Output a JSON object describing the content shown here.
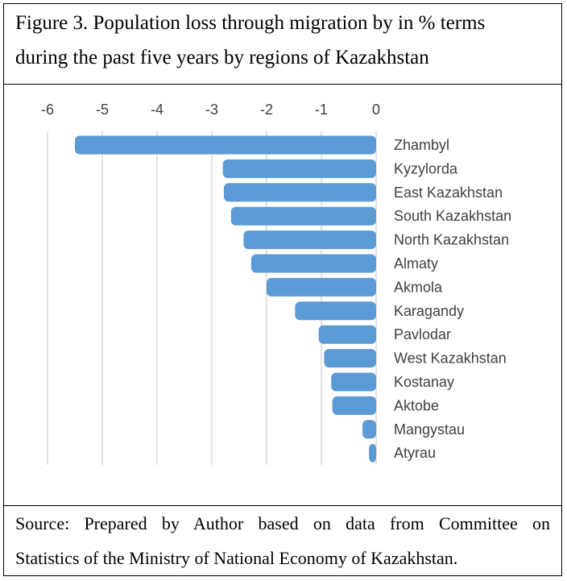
{
  "figure": {
    "title_line1": "Figure 3. Population loss through migration by in % terms",
    "title_line2": "during the past five years by regions of Kazakhstan",
    "source_line1": "Source: Prepared by Author based on data from Committee on",
    "source_line2": "Statistics of the Ministry of National Economy of Kazakhstan."
  },
  "chart_data": {
    "type": "bar",
    "orientation": "horizontal",
    "categories": [
      "Zhambyl",
      "Kyzylorda",
      "East Kazakhstan",
      "South Kazakhstan",
      "North Kazakhstan",
      "Almaty",
      "Akmola",
      "Karagandy",
      "Pavlodar",
      "West Kazakhstan",
      "Kostanay",
      "Aktobe",
      "Mangystau",
      "Atyrau"
    ],
    "values": [
      -5.5,
      -2.8,
      -2.78,
      -2.65,
      -2.42,
      -2.28,
      -2.0,
      -1.48,
      -1.05,
      -0.95,
      -0.82,
      -0.8,
      -0.25,
      -0.13
    ],
    "xlim": [
      -6,
      0
    ],
    "xticks": [
      "-6",
      "-5",
      "-4",
      "-3",
      "-2",
      "-1",
      "0"
    ],
    "xtick_values": [
      -6,
      -5,
      -4,
      -3,
      -2,
      -1,
      0
    ],
    "axis_position": "top",
    "grid": true,
    "bar_color": "#5B9BD5",
    "grid_color": "#D9D9D9"
  }
}
